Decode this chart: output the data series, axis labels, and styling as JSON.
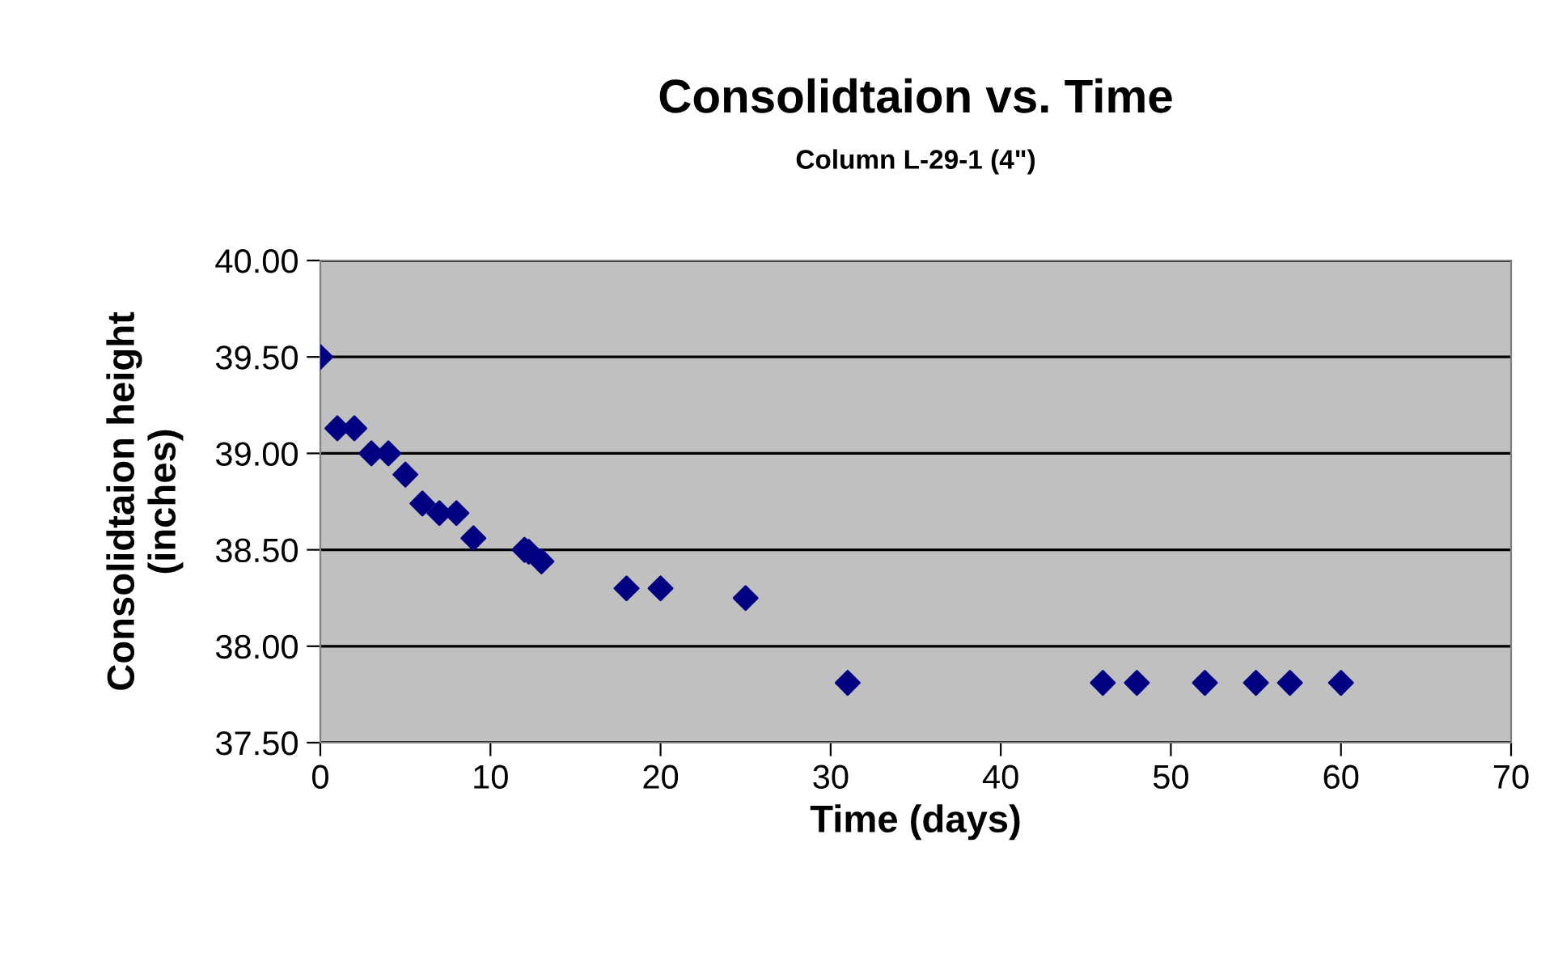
{
  "chart_data": {
    "type": "scatter",
    "title": "Consolidtaion vs. Time",
    "subtitle": "Column L-29-1 (4\")",
    "xlabel": "Time (days)",
    "ylabel": "Consolidtaion height\n(inches)",
    "x": [
      0,
      1,
      2,
      3,
      4,
      5,
      6,
      7,
      8,
      9,
      12,
      12.25,
      13,
      18,
      20,
      25,
      31,
      46,
      48,
      52,
      55,
      57,
      60
    ],
    "series": [
      {
        "color": "#000080",
        "values": [
          39.5,
          39.13,
          39.13,
          39.0,
          39.0,
          38.89,
          38.74,
          38.69,
          38.69,
          38.56,
          38.5,
          38.49,
          38.44,
          38.3,
          38.3,
          38.25,
          37.81,
          37.81,
          37.81,
          37.81,
          37.81,
          37.81,
          37.81
        ]
      }
    ],
    "xlim": [
      0,
      70
    ],
    "xticks": [
      0,
      10,
      20,
      30,
      40,
      50,
      60,
      70
    ],
    "ylim": [
      37.5,
      40.0
    ],
    "yticks": [
      {
        "value": 37.5,
        "label": "37.50"
      },
      {
        "value": 38.0,
        "label": "38.00"
      },
      {
        "value": 38.5,
        "label": "38.50"
      },
      {
        "value": 39.0,
        "label": "39.00"
      },
      {
        "value": 39.5,
        "label": "39.50"
      },
      {
        "value": 40.0,
        "label": "40.00"
      }
    ],
    "grid": "y",
    "marker": "diamond",
    "legend": false
  }
}
